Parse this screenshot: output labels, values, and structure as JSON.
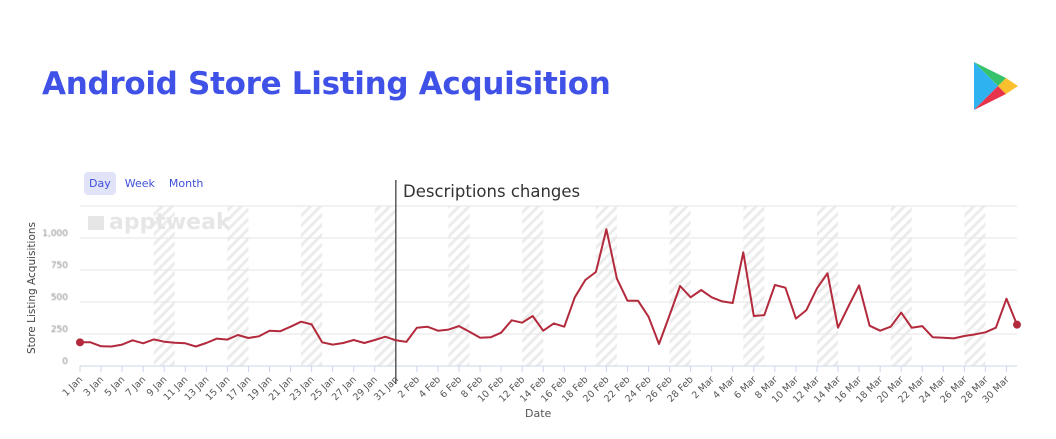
{
  "header": {
    "title": "Android Store Listing Acquisition",
    "logo": "google-play-logo"
  },
  "range_selector": {
    "options": [
      "Day",
      "Week",
      "Month"
    ],
    "selected": "Day"
  },
  "watermark": "apptweak",
  "colors": {
    "title": "#3f51e6",
    "series": "#b22a3c",
    "annotation_line": "#333333"
  },
  "chart_data": {
    "type": "line",
    "title": "",
    "xlabel": "Date",
    "ylabel": "Store Listing Acquisitions",
    "ylim": [
      0,
      1250
    ],
    "yticks": [
      0,
      250,
      500,
      750,
      1000
    ],
    "ytick_labels": [
      "0",
      "250",
      "500",
      "750",
      "1,000"
    ],
    "grid": true,
    "x": [
      "1 Jan",
      "2 Jan",
      "3 Jan",
      "4 Jan",
      "5 Jan",
      "6 Jan",
      "7 Jan",
      "8 Jan",
      "9 Jan",
      "10 Jan",
      "11 Jan",
      "12 Jan",
      "13 Jan",
      "14 Jan",
      "15 Jan",
      "16 Jan",
      "17 Jan",
      "18 Jan",
      "19 Jan",
      "20 Jan",
      "21 Jan",
      "22 Jan",
      "23 Jan",
      "24 Jan",
      "25 Jan",
      "26 Jan",
      "27 Jan",
      "28 Jan",
      "29 Jan",
      "30 Jan",
      "31 Jan",
      "1 Feb",
      "2 Feb",
      "3 Feb",
      "4 Feb",
      "5 Feb",
      "6 Feb",
      "7 Feb",
      "8 Feb",
      "9 Feb",
      "10 Feb",
      "11 Feb",
      "12 Feb",
      "13 Feb",
      "14 Feb",
      "15 Feb",
      "16 Feb",
      "17 Feb",
      "18 Feb",
      "19 Feb",
      "20 Feb",
      "21 Feb",
      "22 Feb",
      "23 Feb",
      "24 Feb",
      "25 Feb",
      "26 Feb",
      "27 Feb",
      "28 Feb",
      "1 Mar",
      "2 Mar",
      "3 Mar",
      "4 Mar",
      "5 Mar",
      "6 Mar",
      "7 Mar",
      "8 Mar",
      "9 Mar",
      "10 Mar",
      "11 Mar",
      "12 Mar",
      "13 Mar",
      "14 Mar",
      "15 Mar",
      "16 Mar",
      "17 Mar",
      "18 Mar",
      "19 Mar",
      "20 Mar",
      "21 Mar",
      "22 Mar",
      "23 Mar",
      "24 Mar",
      "25 Mar",
      "26 Mar",
      "27 Mar",
      "28 Mar",
      "29 Mar",
      "30 Mar",
      "31 Mar"
    ],
    "series": [
      {
        "values": [
          185,
          185,
          154,
          152,
          167,
          201,
          177,
          208,
          190,
          182,
          177,
          152,
          180,
          214,
          206,
          242,
          219,
          232,
          276,
          271,
          307,
          346,
          325,
          185,
          167,
          180,
          203,
          180,
          203,
          229,
          201,
          188,
          299,
          307,
          276,
          284,
          312,
          268,
          221,
          224,
          260,
          357,
          338,
          391,
          276,
          333,
          307,
          537,
          672,
          734,
          1068,
          682,
          510,
          510,
          385,
          172,
          398,
          625,
          537,
          594,
          537,
          505,
          492,
          888,
          391,
          398,
          633,
          612,
          370,
          437,
          607,
          724,
          299,
          469,
          630,
          315,
          276,
          307,
          417,
          299,
          312,
          224,
          221,
          216,
          234,
          247,
          263,
          299,
          526,
          323
        ]
      }
    ],
    "shaded_periods": [
      [
        "8 Jan",
        "10 Jan"
      ],
      [
        "15 Jan",
        "17 Jan"
      ],
      [
        "22 Jan",
        "24 Jan"
      ],
      [
        "29 Jan",
        "31 Jan"
      ],
      [
        "5 Feb",
        "7 Feb"
      ],
      [
        "12 Feb",
        "14 Feb"
      ],
      [
        "19 Feb",
        "21 Feb"
      ],
      [
        "26 Feb",
        "28 Feb"
      ],
      [
        "5 Mar",
        "7 Mar"
      ],
      [
        "12 Mar",
        "14 Mar"
      ],
      [
        "19 Mar",
        "21 Mar"
      ],
      [
        "26 Mar",
        "28 Mar"
      ]
    ],
    "annotations": [
      {
        "x": "31 Jan",
        "text": "Descriptions changes"
      }
    ]
  }
}
